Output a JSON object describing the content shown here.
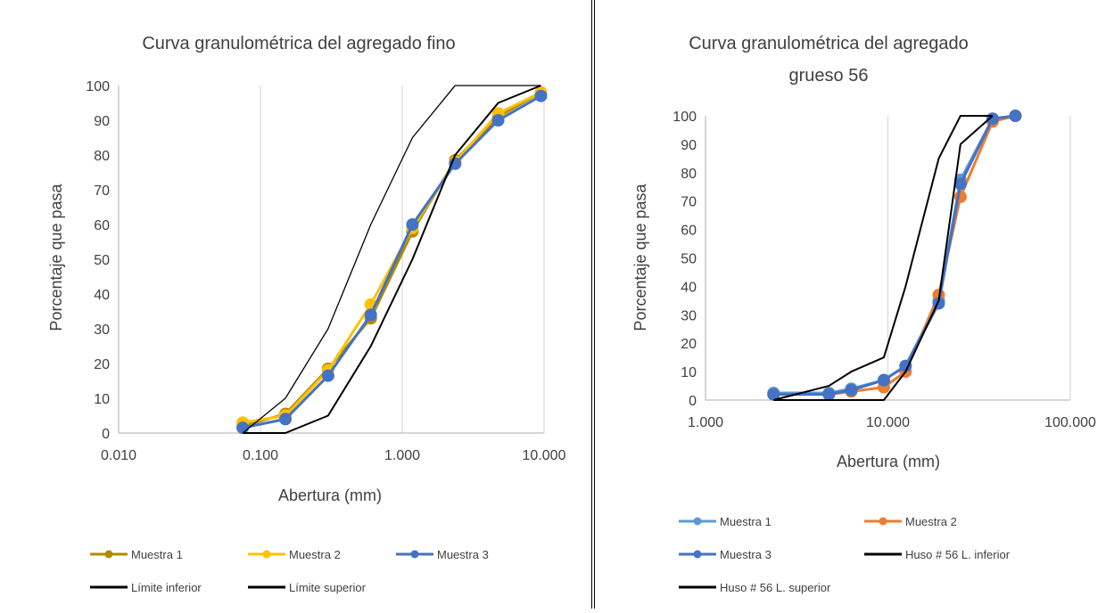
{
  "chart_data": [
    {
      "type": "scatter",
      "title": "Curva granulométrica del agregado fino",
      "xlabel": "Abertura (mm)",
      "ylabel": "Porcentaje que pasa",
      "xscale": "log",
      "xlim": [
        0.01,
        10
      ],
      "ylim": [
        0,
        100
      ],
      "xticks": [
        "0.010",
        "0.100",
        "1.000",
        "10.000"
      ],
      "yticks": [
        "0",
        "10",
        "20",
        "30",
        "40",
        "50",
        "60",
        "70",
        "80",
        "90",
        "100"
      ],
      "grid": "vertical",
      "legend_position": "bottom",
      "series": [
        {
          "name": "Muestra 1",
          "color": "#b08c00",
          "marker": true,
          "width": 3,
          "x": [
            0.075,
            0.15,
            0.3,
            0.6,
            1.18,
            2.36,
            4.75,
            9.5
          ],
          "y": [
            2,
            5.5,
            18.5,
            33,
            58,
            78.5,
            91,
            98
          ]
        },
        {
          "name": "Muestra 2",
          "color": "#ffc000",
          "marker": true,
          "width": 3,
          "x": [
            0.075,
            0.15,
            0.3,
            0.6,
            1.18,
            2.36,
            4.75,
            9.5
          ],
          "y": [
            3,
            5,
            18,
            37,
            59,
            78,
            92,
            98
          ]
        },
        {
          "name": "Muestra 3",
          "color": "#4472c4",
          "marker": true,
          "width": 3,
          "x": [
            0.075,
            0.15,
            0.3,
            0.6,
            1.18,
            2.36,
            4.75,
            9.5
          ],
          "y": [
            1.5,
            4,
            16.5,
            34,
            60,
            77.5,
            90,
            97
          ]
        },
        {
          "name": "Límite inferior",
          "color": "#000000",
          "marker": false,
          "width": 2,
          "x": [
            0.075,
            0.15,
            0.3,
            0.6,
            1.18,
            2.36,
            4.75,
            9.5
          ],
          "y": [
            0,
            0,
            5,
            25,
            50,
            80,
            95,
            100
          ]
        },
        {
          "name": "Límite superior",
          "color": "#000000",
          "marker": false,
          "width": 1.3,
          "x": [
            0.075,
            0.15,
            0.3,
            0.6,
            1.18,
            2.36,
            4.75,
            9.5
          ],
          "y": [
            0,
            10,
            30,
            60,
            85,
            100,
            100,
            100
          ]
        }
      ]
    },
    {
      "type": "scatter",
      "title_lines": [
        "Curva granulométrica del agregado",
        "grueso 56"
      ],
      "xlabel": "Abertura (mm)",
      "ylabel": "Porcentaje que pasa",
      "xscale": "log",
      "xlim": [
        1,
        100
      ],
      "ylim": [
        0,
        100
      ],
      "xticks": [
        "1.000",
        "10.000",
        "100.000"
      ],
      "yticks": [
        "0",
        "10",
        "20",
        "30",
        "40",
        "50",
        "60",
        "70",
        "80",
        "90",
        "100"
      ],
      "grid": "vertical",
      "legend_position": "bottom",
      "series": [
        {
          "name": "Muestra 1",
          "color": "#5b9bd5",
          "marker": true,
          "width": 3,
          "x": [
            2.36,
            4.75,
            6.3,
            9.5,
            12.5,
            19,
            25,
            37.5,
            50
          ],
          "y": [
            2.5,
            2.5,
            4,
            7,
            12,
            35,
            77.5,
            99,
            100
          ]
        },
        {
          "name": "Muestra 2",
          "color": "#ed7d31",
          "marker": true,
          "width": 3,
          "x": [
            2.36,
            4.75,
            6.3,
            9.5,
            12.5,
            19,
            25,
            37.5,
            50
          ],
          "y": [
            2,
            2,
            3,
            4.5,
            10,
            37,
            71.5,
            98,
            100
          ]
        },
        {
          "name": "Muestra 3",
          "color": "#4472c4",
          "marker": true,
          "width": 3,
          "x": [
            2.36,
            4.75,
            6.3,
            9.5,
            12.5,
            19,
            25,
            37.5,
            50
          ],
          "y": [
            2,
            2,
            3.5,
            7,
            12,
            34,
            76,
            99,
            100
          ]
        },
        {
          "name": "Huso # 56 L. inferior",
          "color": "#000000",
          "marker": false,
          "width": 2,
          "x": [
            2.36,
            4.75,
            9.5,
            12.5,
            19,
            25,
            37.5
          ],
          "y": [
            0,
            0,
            0,
            10,
            35,
            90,
            100
          ]
        },
        {
          "name": "Huso # 56 L. superior",
          "color": "#000000",
          "marker": false,
          "width": 2,
          "x": [
            2.36,
            4.75,
            6.3,
            9.5,
            12.5,
            19,
            25,
            37.5
          ],
          "y": [
            0,
            5,
            10,
            15,
            40,
            85,
            100,
            100
          ]
        }
      ]
    }
  ]
}
